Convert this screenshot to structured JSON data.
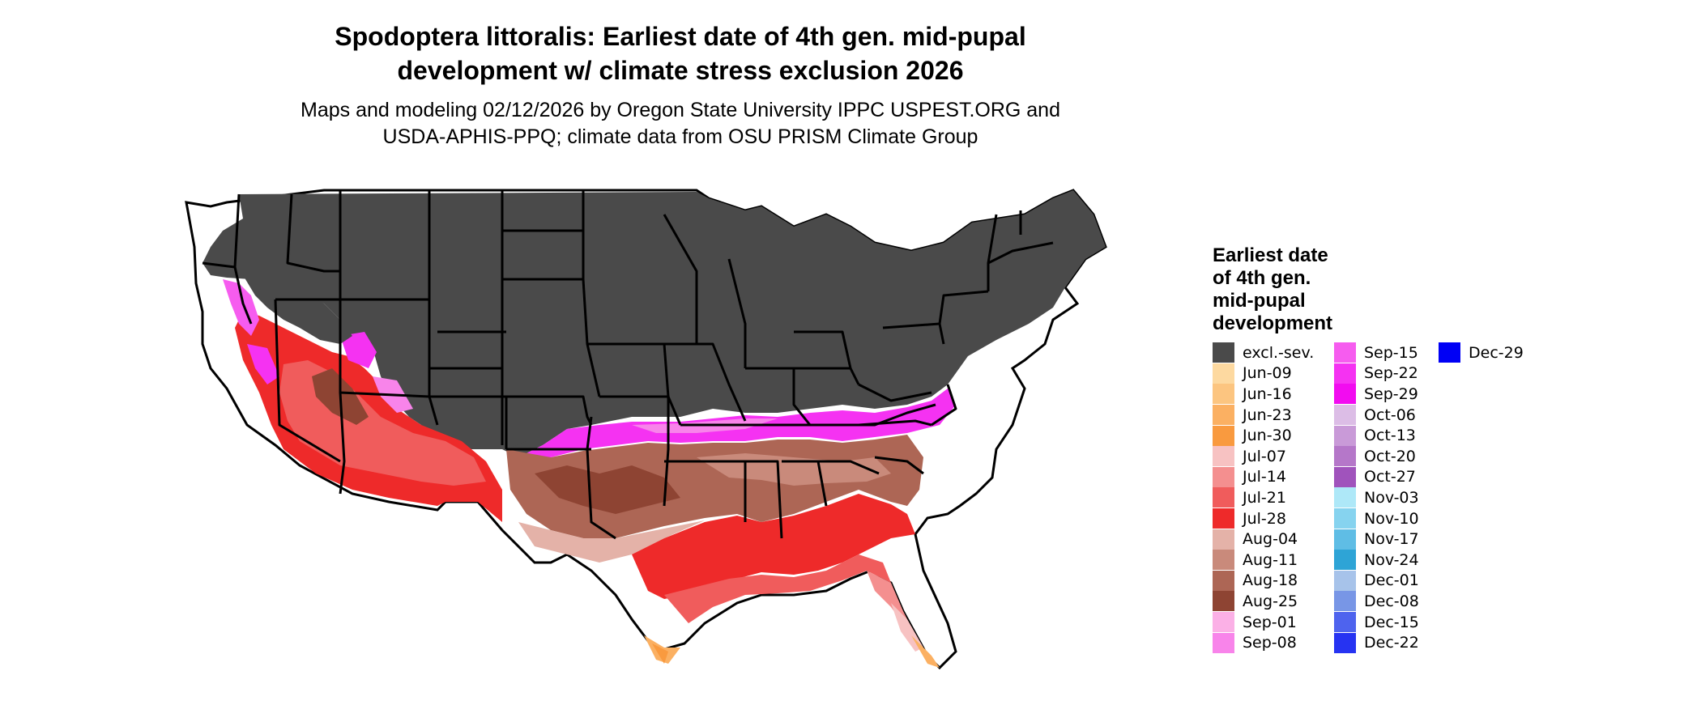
{
  "title": {
    "line1": "Spodoptera littoralis: Earliest date of 4th gen. mid-pupal",
    "line2": "development w/ climate stress exclusion 2026"
  },
  "subtitle": {
    "line1": "Maps and modeling 02/12/2026 by Oregon State University IPPC USPEST.ORG and",
    "line2": "USDA-APHIS-PPQ; climate data from OSU PRISM Climate Group"
  },
  "legend": {
    "title_lines": [
      "Earliest date",
      "of 4th gen.",
      "mid-pupal",
      "development"
    ],
    "items": [
      {
        "label": "excl.-sev.",
        "color": "#4a4a4a"
      },
      {
        "label": "Jun-09",
        "color": "#fdd9a0"
      },
      {
        "label": "Jun-16",
        "color": "#fcc580"
      },
      {
        "label": "Jun-23",
        "color": "#fbb062"
      },
      {
        "label": "Jun-30",
        "color": "#f99a3f"
      },
      {
        "label": "Jul-07",
        "color": "#f7c2c2"
      },
      {
        "label": "Jul-14",
        "color": "#f48f8f"
      },
      {
        "label": "Jul-21",
        "color": "#f05c5c"
      },
      {
        "label": "Jul-28",
        "color": "#ee2a2a"
      },
      {
        "label": "Aug-04",
        "color": "#e4b2a8"
      },
      {
        "label": "Aug-11",
        "color": "#c98a7b"
      },
      {
        "label": "Aug-18",
        "color": "#ad6655"
      },
      {
        "label": "Aug-25",
        "color": "#8e4433"
      },
      {
        "label": "Sep-01",
        "color": "#fbb0e6"
      },
      {
        "label": "Sep-08",
        "color": "#f884ea"
      },
      {
        "label": "Sep-15",
        "color": "#f65cef"
      },
      {
        "label": "Sep-22",
        "color": "#f532f2"
      },
      {
        "label": "Sep-29",
        "color": "#f20cf0"
      },
      {
        "label": "Oct-06",
        "color": "#dcbde6"
      },
      {
        "label": "Oct-13",
        "color": "#c99ad8"
      },
      {
        "label": "Oct-20",
        "color": "#b577c9"
      },
      {
        "label": "Oct-27",
        "color": "#a053bc"
      },
      {
        "label": "Nov-03",
        "color": "#aee8f8"
      },
      {
        "label": "Nov-10",
        "color": "#86d3ef"
      },
      {
        "label": "Nov-17",
        "color": "#5fbde5"
      },
      {
        "label": "Nov-24",
        "color": "#2ea4d6"
      },
      {
        "label": "Dec-01",
        "color": "#a7c3ea"
      },
      {
        "label": "Dec-08",
        "color": "#7896e6"
      },
      {
        "label": "Dec-15",
        "color": "#4e63ee"
      },
      {
        "label": "Dec-22",
        "color": "#2633f2"
      },
      {
        "label": "Dec-29",
        "color": "#0000f5"
      }
    ]
  }
}
